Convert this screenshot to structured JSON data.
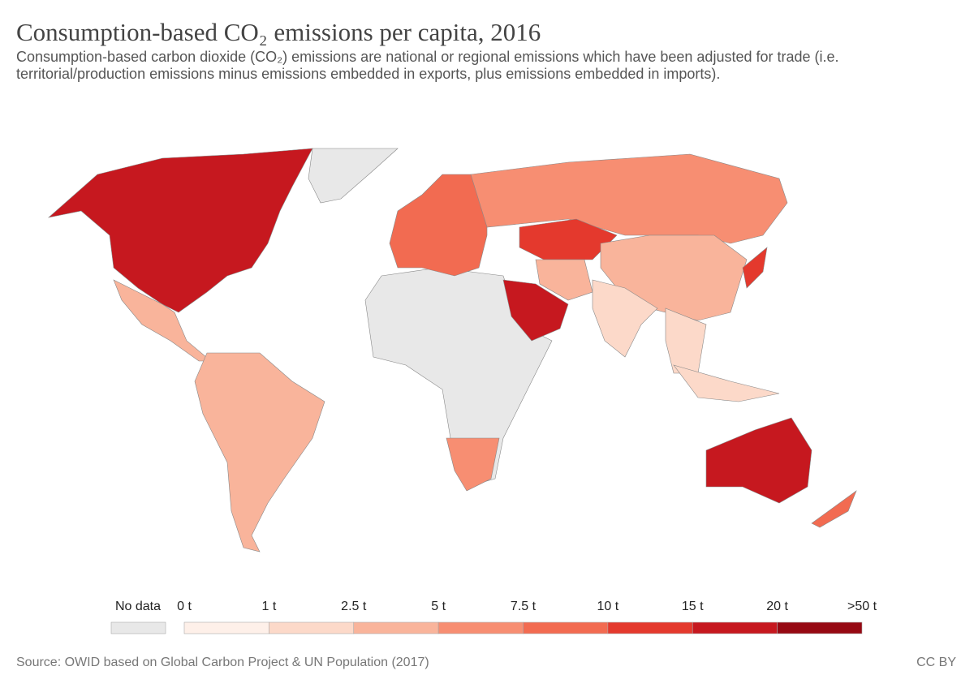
{
  "header": {
    "title": "Consumption-based CO₂ emissions per capita, 2016",
    "subtitle": "Consumption-based carbon dioxide (CO₂) emissions are national or regional emissions which have been adjusted for trade (i.e. territorial/production emissions minus emissions embedded in exports, plus emissions embedded in imports)."
  },
  "legend": {
    "no_data_label": "No data",
    "no_data_color": "#e8e8e8",
    "labels": [
      "0 t",
      "1 t",
      "2.5 t",
      "5 t",
      "7.5 t",
      "10 t",
      "15 t",
      "20 t",
      ">50 t"
    ],
    "colors": [
      "#fef0e9",
      "#fcd9c9",
      "#f9b49b",
      "#f78e72",
      "#f26b51",
      "#e4392d",
      "#c6181f",
      "#960913"
    ]
  },
  "footer": {
    "source": "Source: OWID based on Global Carbon Project & UN Population (2017)",
    "license": "CC BY"
  }
}
